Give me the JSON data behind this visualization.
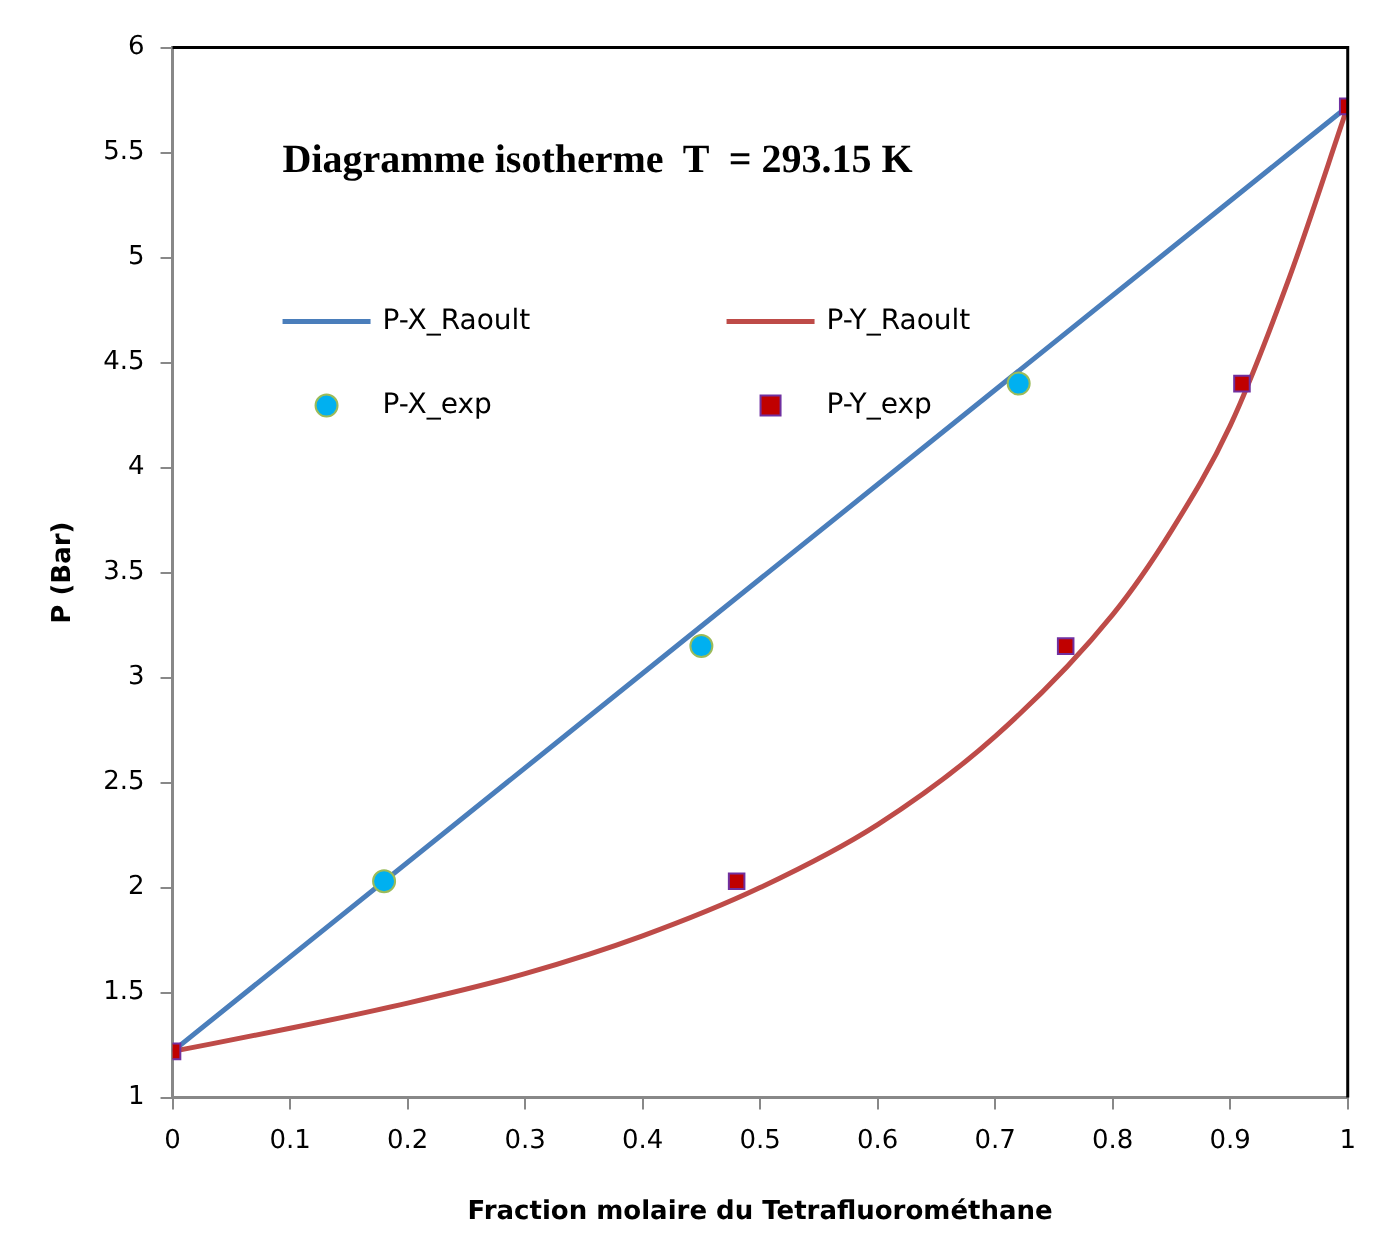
{
  "chart_data": {
    "type": "line",
    "title": "Diagramme isotherme  T  = 293.15 K",
    "xlabel": "Fraction molaire du Tetrafluorométhane",
    "ylabel": "P (Bar)",
    "xlim": [
      0,
      1
    ],
    "xticks": [
      0,
      0.1,
      0.2,
      0.3,
      0.4,
      0.5,
      0.6,
      0.7,
      0.8,
      0.9,
      1
    ],
    "ylim": [
      1,
      6
    ],
    "yticks": [
      1,
      1.5,
      2,
      2.5,
      3,
      3.5,
      4,
      4.5,
      5,
      5.5,
      6
    ],
    "grid": false,
    "legend": "top left",
    "series": [
      {
        "name": "P-X_Raoult",
        "color": "#4a7ebb",
        "marker": "none",
        "x": [
          0,
          1
        ],
        "values": [
          1.22,
          5.72
        ]
      },
      {
        "name": "P-Y_Raoult",
        "color": "#be4b48",
        "marker": "none",
        "x": [
          0,
          0.1,
          0.2,
          0.3,
          0.4,
          0.5,
          0.6,
          0.7,
          0.8,
          0.85,
          0.9,
          0.95,
          1
        ],
        "values": [
          1.22,
          1.33,
          1.45,
          1.59,
          1.77,
          2.0,
          2.3,
          2.72,
          3.3,
          3.7,
          4.2,
          4.9,
          5.72
        ]
      },
      {
        "name": "P-X_exp",
        "type": "scatter",
        "color": "#00b0f0",
        "marker": "circle",
        "x": [
          0.18,
          0.45,
          0.72
        ],
        "values": [
          2.03,
          3.15,
          4.4
        ]
      },
      {
        "name": "P-Y_exp",
        "type": "scatter",
        "color": "#c00000",
        "marker": "square",
        "x": [
          0,
          0.48,
          0.76,
          0.91,
          1
        ],
        "values": [
          1.22,
          2.03,
          3.15,
          4.4,
          5.72
        ]
      }
    ]
  }
}
